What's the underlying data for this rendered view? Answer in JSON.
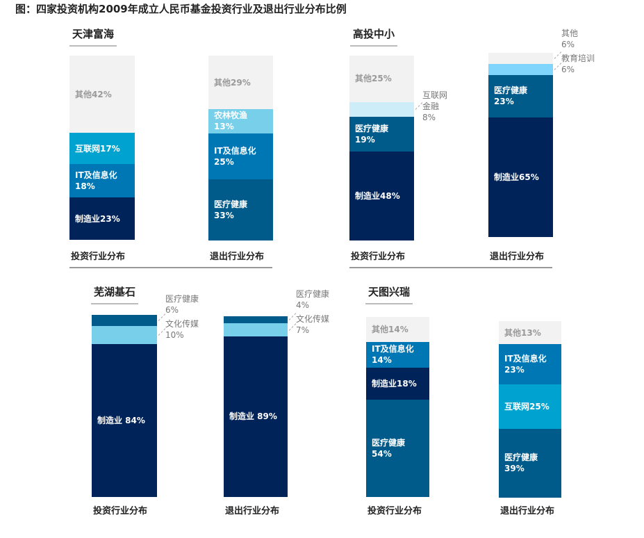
{
  "title": "图：四家投资机构2009年成立人民币基金投资行业及退出行业分布比例",
  "chart_data": [
    {
      "type": "bar",
      "stacked": true,
      "title": "天津富海",
      "bars": [
        {
          "name": "投资行业分布",
          "segments": [
            {
              "label": [
                "制造业23%"
              ],
              "value": 23,
              "color": "#002359"
            },
            {
              "label": [
                "IT及信息化",
                "18%"
              ],
              "value": 18,
              "color": "#0077b5"
            },
            {
              "label": [
                "互联网17%"
              ],
              "value": 17,
              "color": "#00a3cf"
            },
            {
              "label": [
                "其他42%"
              ],
              "value": 42,
              "color": "#f2f2f2",
              "text": "dark"
            }
          ]
        },
        {
          "name": "退出行业分布",
          "segments": [
            {
              "label": [
                "医疗健康",
                "33%"
              ],
              "value": 33,
              "color": "#005a8a"
            },
            {
              "label": [
                "IT及信息化",
                "25%"
              ],
              "value": 25,
              "color": "#0077b5"
            },
            {
              "label": [
                "农林牧渔",
                "13%"
              ],
              "value": 13,
              "color": "#78cfea"
            },
            {
              "label": [
                "其他29%"
              ],
              "value": 29,
              "color": "#f2f2f2",
              "text": "dark"
            }
          ]
        }
      ]
    },
    {
      "type": "bar",
      "stacked": true,
      "title": "高投中小",
      "bars": [
        {
          "name": "投资行业分布",
          "segments": [
            {
              "label": [
                "制造业48%"
              ],
              "value": 48,
              "color": "#002359"
            },
            {
              "label": [
                "医疗健康",
                "19%"
              ],
              "value": 19,
              "color": "#005a8a"
            },
            {
              "label": [
                "互联网",
                "金融",
                "8%"
              ],
              "value": 8,
              "color": "#cdeef8",
              "position": "outside"
            },
            {
              "label": [
                "其他25%"
              ],
              "value": 25,
              "color": "#f2f2f2",
              "text": "dark"
            }
          ]
        },
        {
          "name": "退出行业分布",
          "segments": [
            {
              "label": [
                "制造业65%"
              ],
              "value": 65,
              "color": "#002359"
            },
            {
              "label": [
                "医疗健康",
                "23%"
              ],
              "value": 23,
              "color": "#005a8a"
            },
            {
              "label": [
                "教育培训",
                "6%"
              ],
              "value": 6,
              "color": "#7fd5fb",
              "position": "outside"
            },
            {
              "label": [
                "其他",
                "6%"
              ],
              "value": 6,
              "color": "#f2f2f2",
              "position": "outside"
            }
          ]
        }
      ]
    },
    {
      "type": "bar",
      "stacked": true,
      "title": "芜湖基石",
      "bars": [
        {
          "name": "投资行业分布",
          "segments": [
            {
              "label": [
                "制造业 84%"
              ],
              "value": 84,
              "color": "#002359"
            },
            {
              "label": [
                "文化传媒",
                "10%"
              ],
              "value": 10,
              "color": "#78cfea",
              "position": "outside"
            },
            {
              "label": [
                "医疗健康",
                "6%"
              ],
              "value": 6,
              "color": "#005a8a",
              "position": "outside"
            }
          ]
        },
        {
          "name": "退出行业分布",
          "segments": [
            {
              "label": [
                "制造业 89%"
              ],
              "value": 89,
              "color": "#002359"
            },
            {
              "label": [
                "文化传媒",
                "7%"
              ],
              "value": 7,
              "color": "#78cfea",
              "position": "outside"
            },
            {
              "label": [
                "医疗健康",
                "4%"
              ],
              "value": 4,
              "color": "#005a8a",
              "position": "outside"
            }
          ]
        }
      ]
    },
    {
      "type": "bar",
      "stacked": true,
      "title": "天图兴瑞",
      "bars": [
        {
          "name": "投资行业分布",
          "segments": [
            {
              "label": [
                "医疗健康",
                "54%"
              ],
              "value": 54,
              "color": "#005a8a"
            },
            {
              "label": [
                "制造业18%"
              ],
              "value": 18,
              "color": "#002359"
            },
            {
              "label": [
                "IT及信息化",
                "14%"
              ],
              "value": 14,
              "color": "#0077b5"
            },
            {
              "label": [
                "其他14%"
              ],
              "value": 14,
              "color": "#f2f2f2",
              "text": "dark"
            }
          ]
        },
        {
          "name": "退出行业分布",
          "segments": [
            {
              "label": [
                "医疗健康",
                "39%"
              ],
              "value": 39,
              "color": "#005a8a"
            },
            {
              "label": [
                "互联网25%"
              ],
              "value": 25,
              "color": "#00a3cf"
            },
            {
              "label": [
                "IT及信息化",
                "23%"
              ],
              "value": 23,
              "color": "#0077b5"
            },
            {
              "label": [
                "其他13%"
              ],
              "value": 13,
              "color": "#f2f2f2",
              "text": "dark"
            }
          ]
        }
      ]
    }
  ]
}
